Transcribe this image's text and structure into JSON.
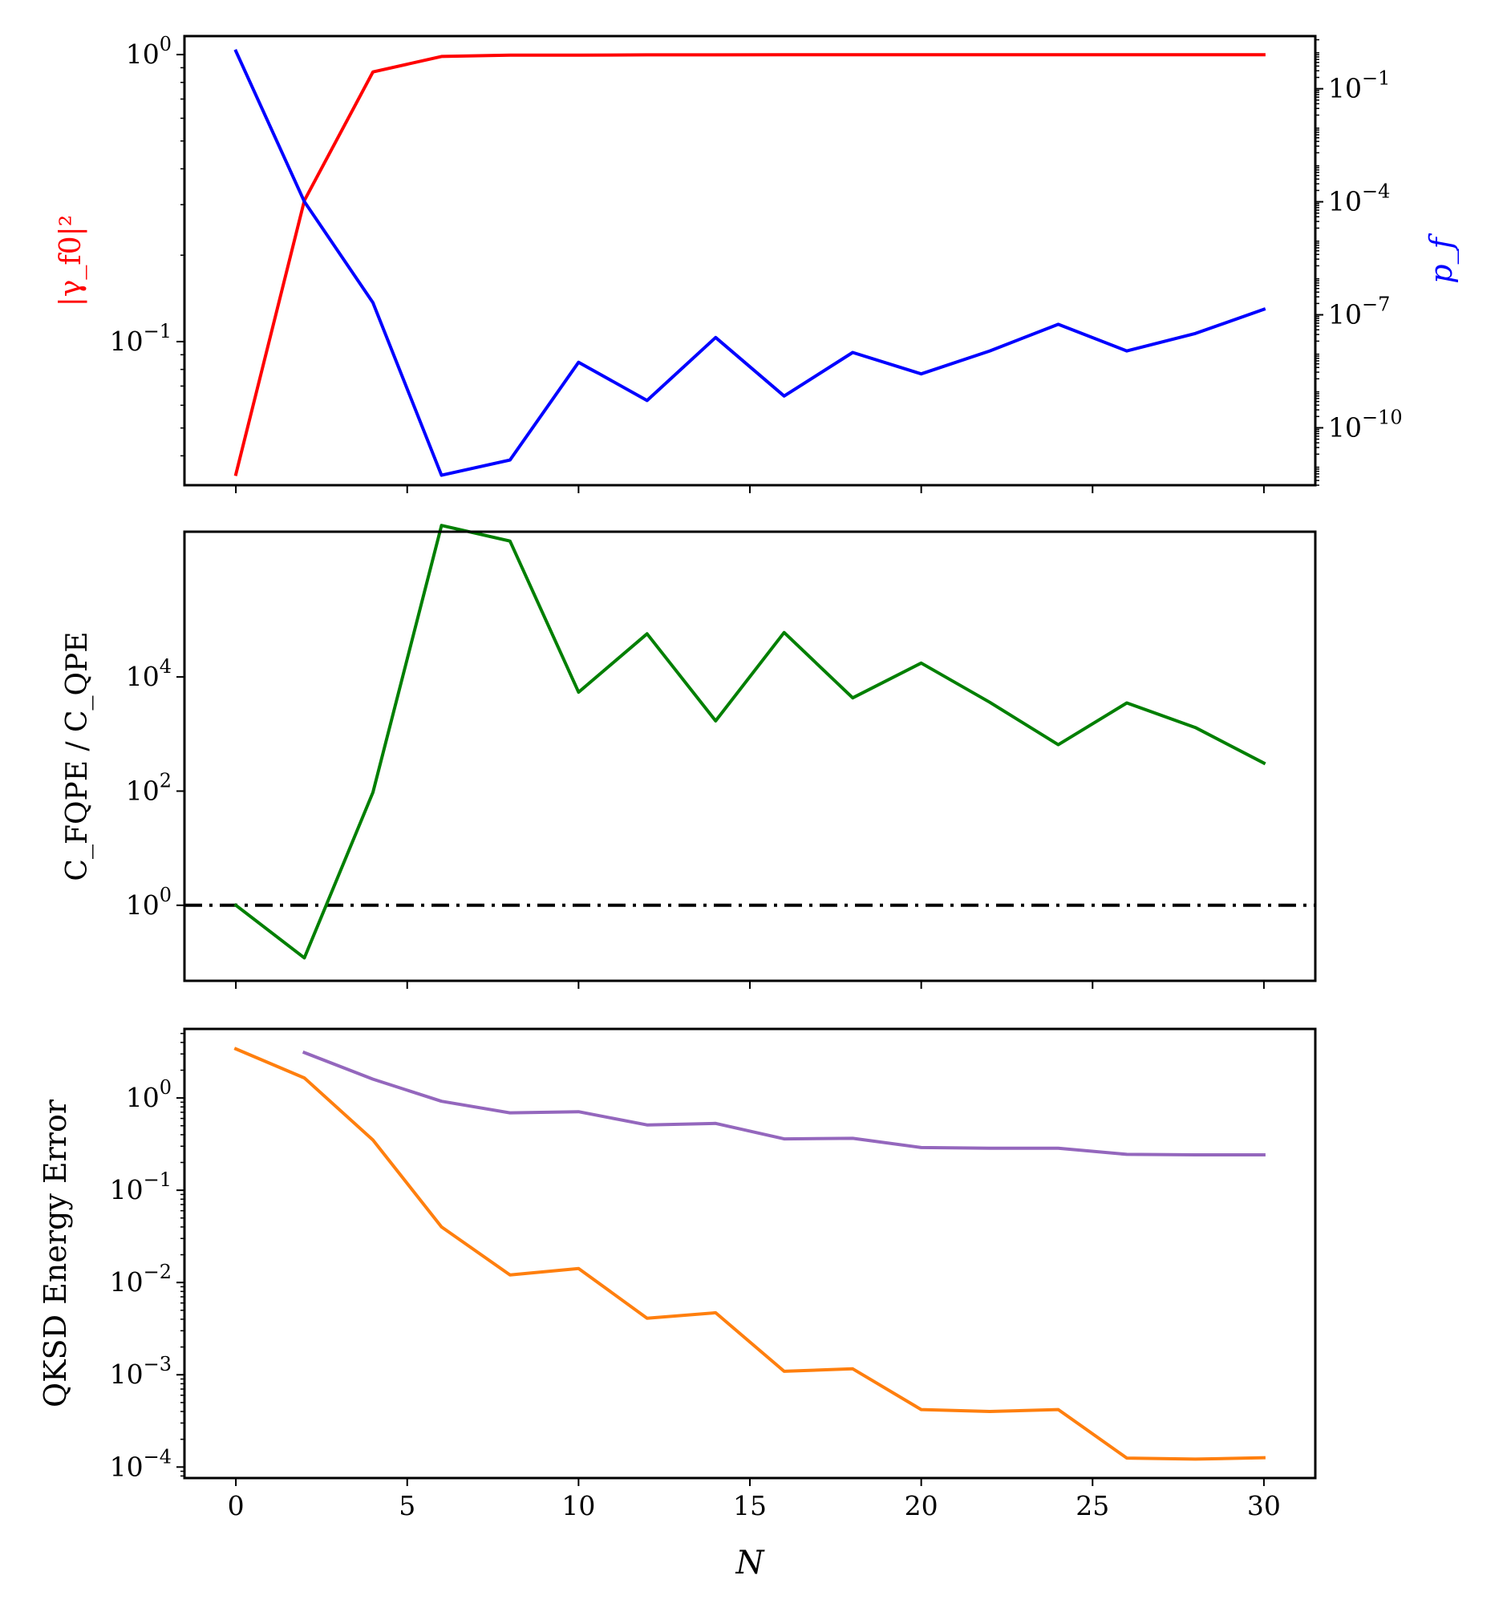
{
  "chart_data": [
    {
      "type": "line",
      "xlabel": "",
      "x_ticks": [
        0,
        5,
        10,
        15,
        20,
        25,
        30
      ],
      "x_tick_labels": [
        "",
        "",
        "",
        "",
        "",
        "",
        ""
      ],
      "xlim": [
        -1.5,
        31.5
      ],
      "ylabel_left": "|γ_f0|²",
      "ylabel_left_color": "#ff0000",
      "yscale_left": "log",
      "ylim_left": [
        0.0316,
        1.16
      ],
      "y_ticks_left": [
        {
          "value": 1,
          "base": "10",
          "exp": "0"
        },
        {
          "value": 0.1,
          "base": "10",
          "exp": "−1"
        }
      ],
      "ylabel_right": "p_f",
      "ylabel_right_color": "#0000ff",
      "yscale_right": "log",
      "ylim_right": [
        3e-12,
        2.5
      ],
      "y_ticks_right": [
        {
          "value": 0.1,
          "base": "10",
          "exp": "−1"
        },
        {
          "value": 0.0001,
          "base": "10",
          "exp": "−4"
        },
        {
          "value": 1e-07,
          "base": "10",
          "exp": "−7"
        },
        {
          "value": 1e-10,
          "base": "10",
          "exp": "−10"
        }
      ],
      "series": [
        {
          "axis": "left",
          "color": "#ff0000",
          "x": [
            0,
            2,
            4,
            6,
            8,
            10,
            12,
            14,
            16,
            18,
            20,
            22,
            24,
            26,
            28,
            30
          ],
          "y": [
            0.0345,
            0.31,
            0.87,
            0.985,
            0.995,
            0.995,
            0.998,
            0.998,
            0.999,
            0.999,
            0.999,
            0.999,
            0.999,
            0.999,
            0.999,
            0.999
          ]
        },
        {
          "axis": "right",
          "color": "#0000ff",
          "x": [
            0,
            2,
            4,
            6,
            8,
            10,
            12,
            14,
            16,
            18,
            20,
            22,
            24,
            26,
            28,
            30
          ],
          "y": [
            1.0,
            0.000101,
            2.1e-07,
            5.5e-12,
            1.4e-11,
            5.5e-09,
            5.3e-10,
            2.5e-08,
            7e-10,
            1e-08,
            2.7e-09,
            1.1e-08,
            5.6e-08,
            1.1e-08,
            3.2e-08,
            1.4e-07
          ]
        }
      ]
    },
    {
      "type": "line",
      "xlabel": "",
      "x_ticks": [
        0,
        5,
        10,
        15,
        20,
        25,
        30
      ],
      "x_tick_labels": [
        "",
        "",
        "",
        "",
        "",
        "",
        ""
      ],
      "xlim": [
        -1.5,
        31.5
      ],
      "ylabel": "C_FQPE / C_QPE",
      "yscale": "log",
      "ylim": [
        0.0475,
        3500000
      ],
      "y_ticks": [
        {
          "value": 1,
          "base": "10",
          "exp": "0"
        },
        {
          "value": 100,
          "base": "10",
          "exp": "2"
        },
        {
          "value": 10000,
          "base": "10",
          "exp": "4"
        }
      ],
      "reference_line": {
        "y": 1,
        "style": "dash-dot",
        "color": "#000000"
      },
      "series": [
        {
          "color": "#007f00",
          "x": [
            0,
            2,
            4,
            6,
            8,
            10,
            12,
            14,
            16,
            18,
            20,
            22,
            24,
            26,
            28,
            30
          ],
          "y": [
            1.0,
            0.12,
            95,
            4500000,
            2400000,
            5400,
            57000,
            1700,
            60000,
            4300,
            17500,
            3600,
            650,
            3500,
            1300,
            310
          ]
        }
      ]
    },
    {
      "type": "line",
      "xlabel": "N",
      "x_ticks": [
        0,
        5,
        10,
        15,
        20,
        25,
        30
      ],
      "x_tick_labels": [
        "0",
        "5",
        "10",
        "15",
        "20",
        "25",
        "30"
      ],
      "xlim": [
        -1.5,
        31.5
      ],
      "ylabel": "QKSD Energy Error",
      "yscale": "log",
      "ylim": [
        7.6e-05,
        5.6
      ],
      "y_ticks": [
        {
          "value": 1,
          "base": "10",
          "exp": "0"
        },
        {
          "value": 0.1,
          "base": "10",
          "exp": "−1"
        },
        {
          "value": 0.01,
          "base": "10",
          "exp": "−2"
        },
        {
          "value": 0.001,
          "base": "10",
          "exp": "−3"
        },
        {
          "value": 0.0001,
          "base": "10",
          "exp": "−4"
        }
      ],
      "series": [
        {
          "color": "#ff7f0e",
          "x": [
            0,
            2,
            4,
            6,
            8,
            10,
            12,
            14,
            16,
            18,
            20,
            22,
            24,
            26,
            28,
            30
          ],
          "y": [
            3.4,
            1.65,
            0.35,
            0.04,
            0.0121,
            0.0142,
            0.0041,
            0.0047,
            0.00109,
            0.00116,
            0.00042,
            0.0004,
            0.00042,
            0.000125,
            0.000122,
            0.000126
          ]
        },
        {
          "color": "#9467bd",
          "x": [
            2,
            4,
            6,
            8,
            10,
            12,
            14,
            16,
            18,
            20,
            22,
            24,
            26,
            28,
            30
          ],
          "y": [
            3.1,
            1.6,
            0.92,
            0.69,
            0.71,
            0.51,
            0.53,
            0.36,
            0.365,
            0.29,
            0.285,
            0.285,
            0.245,
            0.242,
            0.242
          ]
        }
      ]
    }
  ]
}
